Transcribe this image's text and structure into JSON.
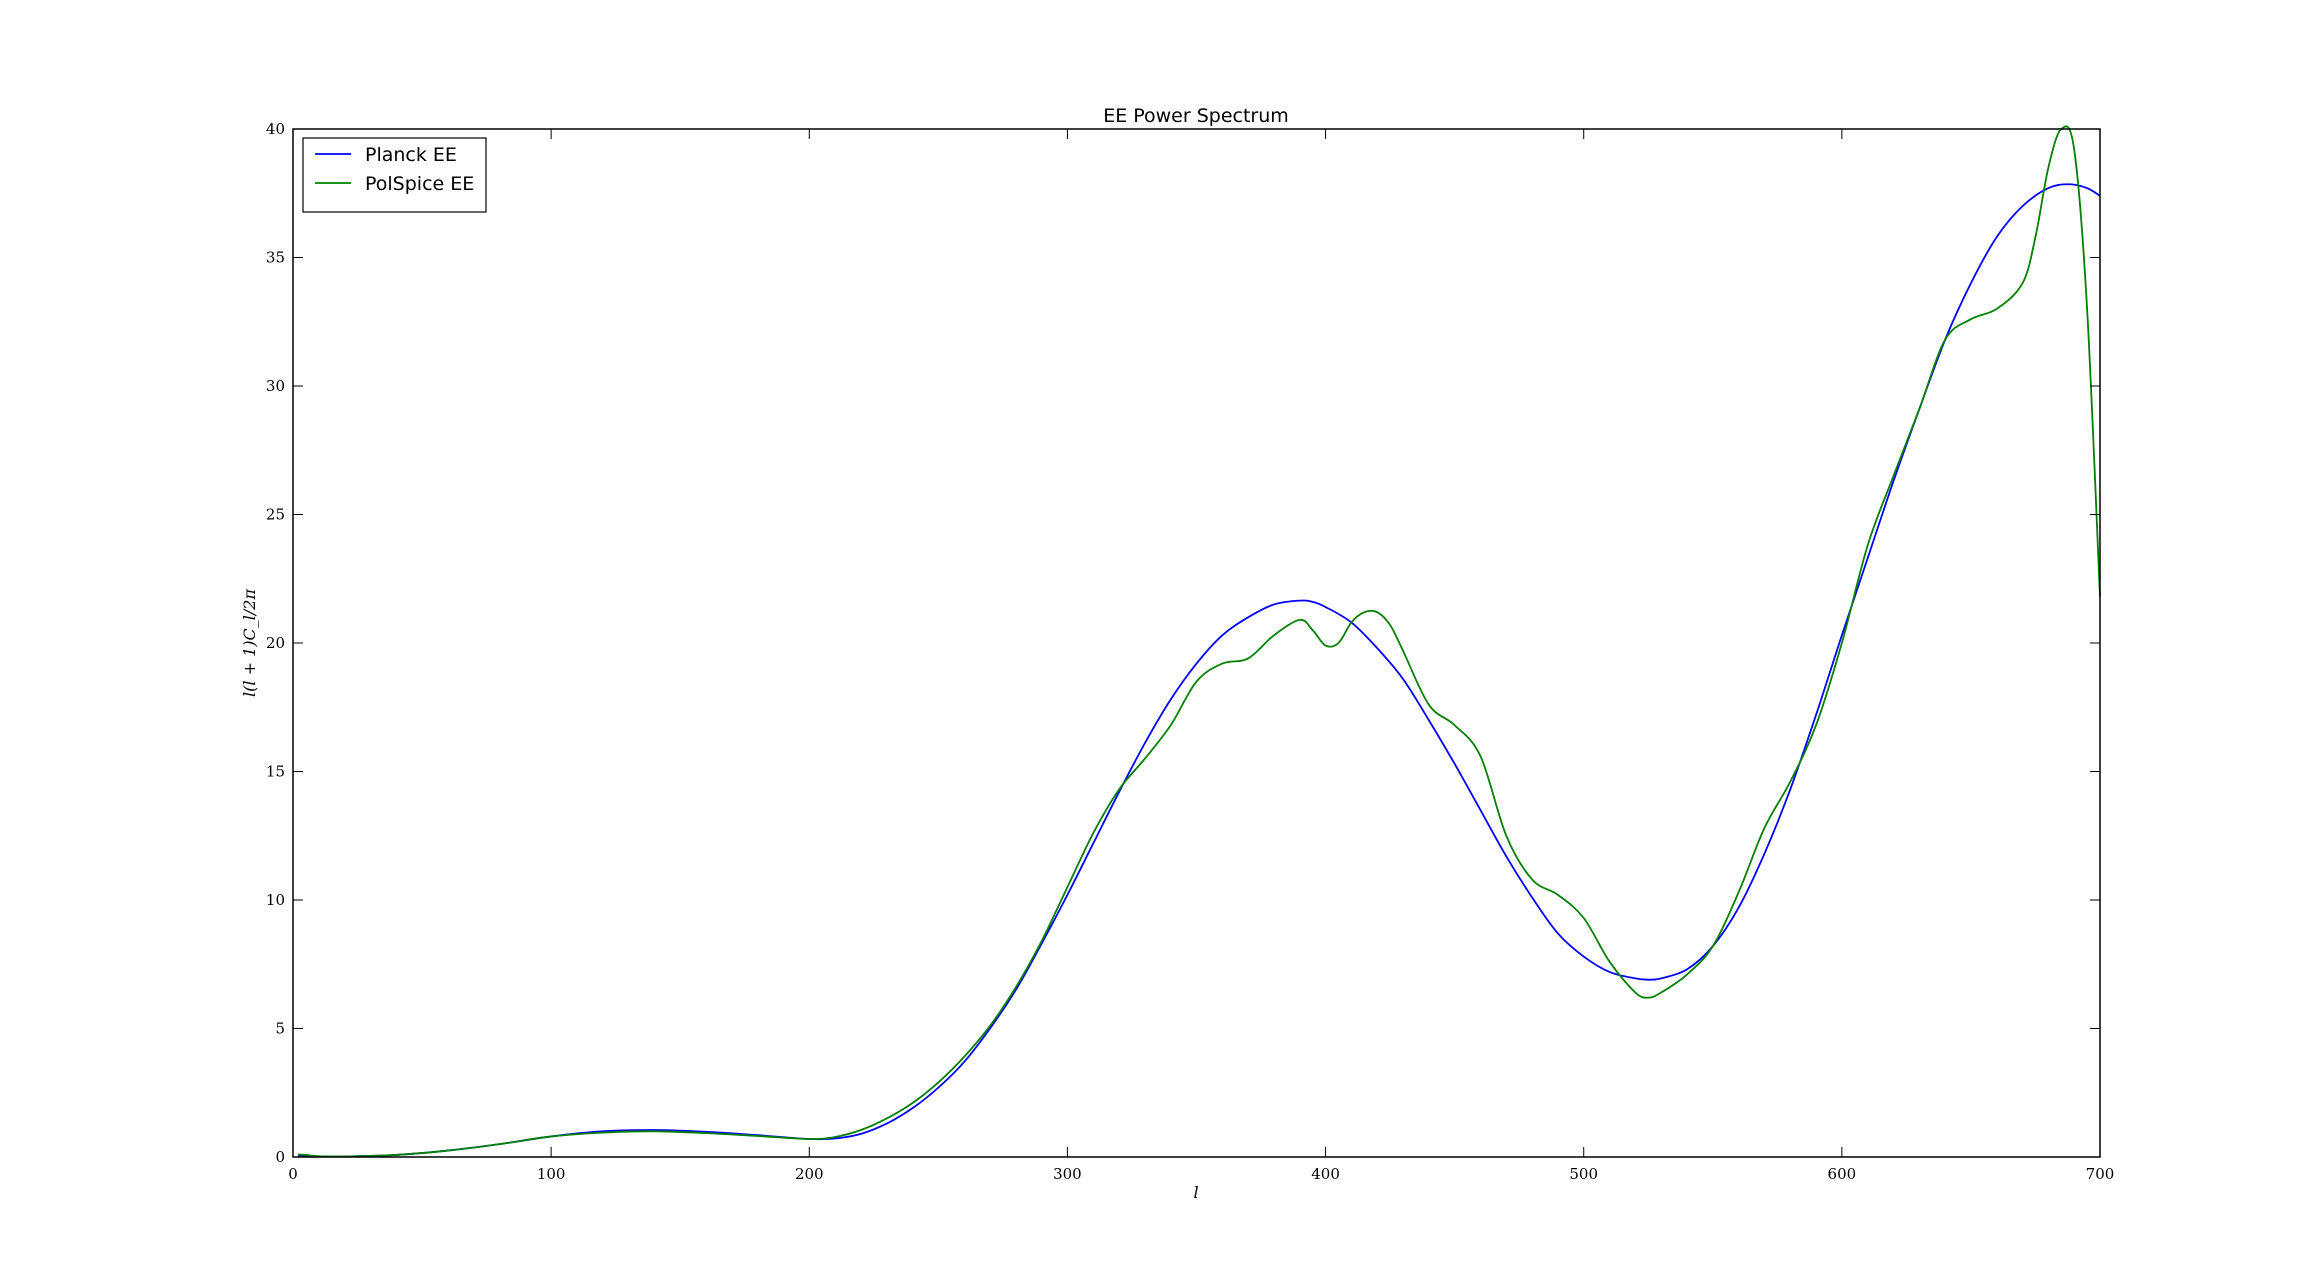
{
  "chart_data": {
    "type": "line",
    "title": "EE Power Spectrum",
    "xlabel": "l",
    "ylabel": "l(l + 1)C_l/2π",
    "xlim": [
      0,
      700
    ],
    "ylim": [
      0,
      40
    ],
    "xticks": [
      0,
      100,
      200,
      300,
      400,
      500,
      600,
      700
    ],
    "yticks": [
      0,
      5,
      10,
      15,
      20,
      25,
      30,
      35,
      40
    ],
    "grid": false,
    "legend_position": "top-left",
    "series": [
      {
        "name": "Planck EE",
        "color": "#0000ff",
        "x": [
          2,
          5,
          10,
          20,
          40,
          60,
          80,
          100,
          120,
          140,
          160,
          180,
          200,
          210,
          220,
          230,
          240,
          250,
          260,
          270,
          280,
          290,
          300,
          310,
          320,
          330,
          340,
          350,
          360,
          370,
          380,
          390,
          395,
          400,
          410,
          420,
          430,
          440,
          450,
          460,
          470,
          480,
          490,
          500,
          510,
          520,
          525,
          530,
          540,
          550,
          560,
          570,
          580,
          590,
          600,
          610,
          620,
          630,
          640,
          650,
          660,
          670,
          680,
          688,
          695,
          700
        ],
        "y": [
          0.05,
          0.03,
          0.02,
          0.02,
          0.08,
          0.25,
          0.5,
          0.8,
          1.0,
          1.05,
          0.98,
          0.85,
          0.7,
          0.72,
          0.9,
          1.3,
          1.9,
          2.7,
          3.7,
          5.0,
          6.5,
          8.3,
          10.2,
          12.2,
          14.2,
          16.1,
          17.8,
          19.2,
          20.3,
          21.0,
          21.5,
          21.65,
          21.6,
          21.4,
          20.8,
          19.8,
          18.6,
          17.0,
          15.3,
          13.5,
          11.7,
          10.1,
          8.7,
          7.8,
          7.2,
          6.95,
          6.9,
          6.95,
          7.3,
          8.2,
          9.7,
          11.8,
          14.3,
          17.2,
          20.3,
          23.3,
          26.3,
          29.1,
          31.8,
          34.0,
          35.8,
          37.0,
          37.7,
          37.85,
          37.7,
          37.4
        ]
      },
      {
        "name": "PolSpice EE",
        "color": "#008000",
        "x": [
          2,
          5,
          10,
          20,
          40,
          60,
          80,
          100,
          120,
          140,
          160,
          180,
          200,
          210,
          220,
          230,
          240,
          250,
          260,
          270,
          280,
          290,
          300,
          310,
          320,
          330,
          340,
          350,
          360,
          370,
          380,
          390,
          395,
          400,
          405,
          410,
          415,
          420,
          425,
          430,
          440,
          450,
          460,
          470,
          480,
          490,
          500,
          510,
          520,
          525,
          530,
          540,
          550,
          560,
          570,
          580,
          590,
          600,
          610,
          620,
          630,
          640,
          650,
          660,
          670,
          675,
          680,
          685,
          690,
          695,
          700
        ],
        "y": [
          0.1,
          0.08,
          0.03,
          0.02,
          0.08,
          0.25,
          0.5,
          0.8,
          0.95,
          1.0,
          0.93,
          0.82,
          0.7,
          0.78,
          1.05,
          1.5,
          2.1,
          2.9,
          3.9,
          5.1,
          6.6,
          8.4,
          10.5,
          12.6,
          14.3,
          15.5,
          16.8,
          18.5,
          19.2,
          19.4,
          20.3,
          20.9,
          20.5,
          19.9,
          20.0,
          20.8,
          21.2,
          21.2,
          20.7,
          19.7,
          17.6,
          16.8,
          15.6,
          12.5,
          10.8,
          10.2,
          9.3,
          7.6,
          6.4,
          6.2,
          6.4,
          7.1,
          8.2,
          10.3,
          12.8,
          14.6,
          16.8,
          20.0,
          23.8,
          26.5,
          29.1,
          31.8,
          32.6,
          33.0,
          34.0,
          35.8,
          38.5,
          40.0,
          39.2,
          33.0,
          21.8
        ]
      }
    ]
  }
}
